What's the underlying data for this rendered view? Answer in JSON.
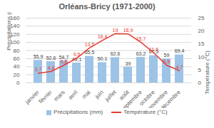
{
  "chart_data": {
    "type": "bar",
    "title": "Orléans-Bricy (1971-2000)",
    "categories": [
      "janvier",
      "février",
      "mars",
      "avril",
      "mai",
      "juin",
      "juillet",
      "août",
      "septembre",
      "octobre",
      "novembre",
      "décembre"
    ],
    "series": [
      {
        "name": "Précipitations (mm)",
        "type": "bar",
        "color": "#9dc3e6",
        "values": [
          55.9,
          52.6,
          54.7,
          49.1,
          65.5,
          50.1,
          62.6,
          39,
          63.2,
          67.5,
          59,
          69.4
        ],
        "value_labels": [
          "55,9",
          "52,6",
          "54,7",
          "49,1",
          "65,5",
          "50,1",
          "62,6",
          "39",
          "63,2",
          "67,5",
          "59",
          "69,4"
        ]
      },
      {
        "name": "Température (°C)",
        "type": "line",
        "axis": "y2",
        "color": "#e8392f",
        "marker": "none",
        "values": [
          3.7,
          4.4,
          6.8,
          9.5,
          13.5,
          16.4,
          19,
          18.9,
          15.7,
          11.6,
          6.8,
          4.7
        ],
        "value_labels": [
          "3,7",
          "4,4",
          "6,8",
          "9,5",
          "13,5",
          "16,4",
          "19",
          "18,9",
          "15,7",
          "11,6",
          "6,8",
          "4,7"
        ]
      }
    ],
    "y_label": "Précipitations (mm)",
    "y2_label": "Température (°C)",
    "ylim": [
      0,
      160
    ],
    "yticks": [
      0,
      20,
      40,
      60,
      80,
      100,
      120,
      140,
      160
    ],
    "y2lim": [
      0,
      25
    ],
    "y2ticks": [
      0,
      5,
      10,
      15,
      20,
      25
    ],
    "grid": true,
    "legend": "bottom",
    "data_labels": true
  }
}
